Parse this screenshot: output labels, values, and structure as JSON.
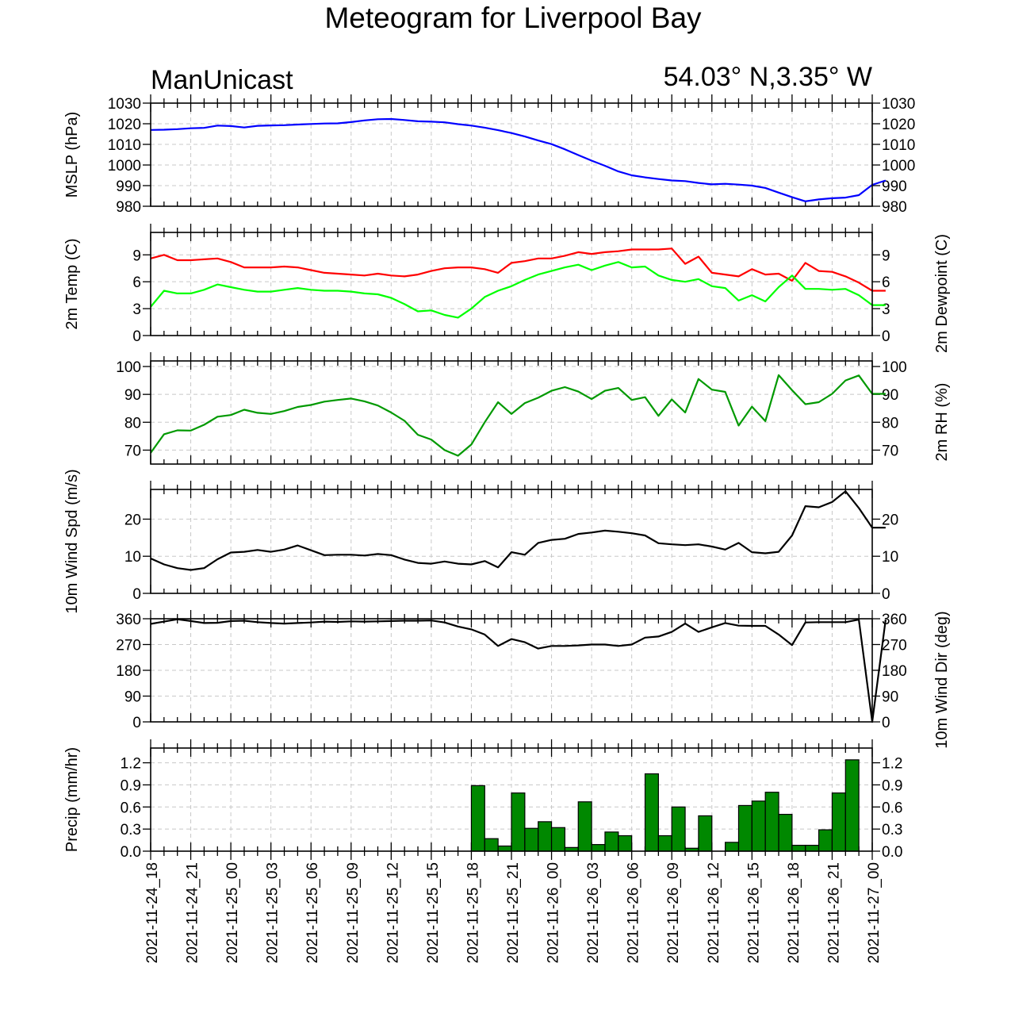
{
  "chart_data": {
    "type": "meteogram",
    "title": "Meteogram for Liverpool Bay",
    "subtitle_left": "ManUnicast",
    "subtitle_right": "54.03° N,3.35° W",
    "x_tick_labels": [
      "2021-11-24_18",
      "2021-11-24_21",
      "2021-11-25_00",
      "2021-11-25_03",
      "2021-11-25_06",
      "2021-11-25_09",
      "2021-11-25_12",
      "2021-11-25_15",
      "2021-11-25_18",
      "2021-11-25_21",
      "2021-11-26_00",
      "2021-11-26_03",
      "2021-11-26_06",
      "2021-11-26_09",
      "2021-11-26_12",
      "2021-11-26_15",
      "2021-11-26_18",
      "2021-11-26_21",
      "2021-11-27_00"
    ],
    "hours_range": [
      0,
      54
    ],
    "panels": [
      {
        "id": "mslp",
        "type": "line",
        "ylabel_left": "MSLP (hPa)",
        "ylabel_right": "",
        "ylim": [
          980,
          1030
        ],
        "yticks": [
          980,
          990,
          1000,
          1010,
          1020,
          1030
        ],
        "ytick_labels": [
          "980",
          "990",
          "1000",
          "1010",
          "1020",
          "1030"
        ],
        "series": [
          {
            "color": "#0000ff",
            "values": [
              1017.0,
              1017.1,
              1017.4,
              1017.8,
              1018.0,
              1019.1,
              1018.9,
              1018.2,
              1019.0,
              1019.2,
              1019.3,
              1019.6,
              1019.9,
              1020.1,
              1020.2,
              1020.8,
              1021.6,
              1022.2,
              1022.3,
              1021.8,
              1021.2,
              1021.0,
              1020.7,
              1019.8,
              1019.1,
              1018.1,
              1016.9,
              1015.5,
              1013.8,
              1011.9,
              1010.1,
              1007.6,
              1004.8,
              1002.1,
              999.6,
              996.9,
              995.0,
              994.0,
              993.2,
              992.5,
              992.2,
              991.3,
              990.6,
              990.9,
              990.5,
              990.0,
              988.9,
              986.6,
              984.4,
              982.4,
              983.3,
              983.9,
              984.2,
              985.4,
              990.4,
              992.5
            ]
          }
        ]
      },
      {
        "id": "temp",
        "type": "line",
        "ylabel_left": "2m Temp (C)",
        "ylabel_right": "2m Dewpoint (C)",
        "ylim": [
          0,
          11.5
        ],
        "yticks": [
          0,
          3,
          6,
          9
        ],
        "ytick_labels": [
          "0",
          "3",
          "6",
          "9"
        ],
        "series": [
          {
            "color": "#ff0000",
            "values": [
              8.6,
              9.0,
              8.4,
              8.4,
              8.5,
              8.6,
              8.2,
              7.6,
              7.6,
              7.6,
              7.7,
              7.6,
              7.3,
              7.0,
              6.9,
              6.8,
              6.7,
              6.9,
              6.7,
              6.6,
              6.8,
              7.2,
              7.5,
              7.6,
              7.6,
              7.4,
              7.0,
              8.1,
              8.3,
              8.6,
              8.6,
              8.9,
              9.3,
              9.1,
              9.3,
              9.4,
              9.6,
              9.6,
              9.6,
              9.7,
              8.0,
              8.8,
              7.0,
              6.8,
              6.6,
              7.4,
              6.8,
              6.9,
              6.1,
              8.1,
              7.2,
              7.1,
              6.6,
              5.9,
              5.0,
              5.0
            ]
          },
          {
            "color": "#00ff00",
            "values": [
              3.2,
              5.0,
              4.7,
              4.7,
              5.1,
              5.7,
              5.4,
              5.1,
              4.9,
              4.9,
              5.1,
              5.3,
              5.1,
              5.0,
              5.0,
              4.9,
              4.7,
              4.6,
              4.2,
              3.5,
              2.7,
              2.8,
              2.3,
              2.0,
              3.0,
              4.3,
              5.0,
              5.5,
              6.2,
              6.8,
              7.2,
              7.6,
              7.9,
              7.3,
              7.8,
              8.2,
              7.6,
              7.7,
              6.7,
              6.2,
              6.0,
              6.3,
              5.5,
              5.3,
              3.9,
              4.5,
              3.8,
              5.4,
              6.7,
              5.2,
              5.2,
              5.1,
              5.2,
              4.5,
              3.4,
              3.4
            ]
          }
        ]
      },
      {
        "id": "rh",
        "type": "line",
        "ylabel_left": "",
        "ylabel_right": "2m RH (%)",
        "ylim": [
          65,
          102
        ],
        "yticks": [
          70,
          80,
          90,
          100
        ],
        "ytick_labels": [
          "70",
          "80",
          "90",
          "100"
        ],
        "series": [
          {
            "color": "#009900",
            "values": [
              69,
              75.7,
              77.1,
              77,
              79.1,
              82,
              82.6,
              84.5,
              83.4,
              83,
              84,
              85.5,
              86.2,
              87.4,
              88,
              88.5,
              87.5,
              86,
              83.5,
              80.5,
              75.5,
              73.8,
              70,
              68,
              72,
              80,
              87.2,
              83,
              86.9,
              88.8,
              91.3,
              92.6,
              91,
              88.3,
              91.3,
              92.3,
              88,
              89,
              82.3,
              88.2,
              83.5,
              95.5,
              91.7,
              90.9,
              78.8,
              85.6,
              80.4,
              96.9,
              91.5,
              86.5,
              87.2,
              90.2,
              95,
              96.8,
              90.2,
              90.2
            ]
          }
        ]
      },
      {
        "id": "wspd",
        "type": "line",
        "ylabel_left": "10m Wind Spd (m/s)",
        "ylabel_right": "",
        "ylim": [
          0,
          28
        ],
        "yticks": [
          0,
          10,
          20
        ],
        "ytick_labels": [
          "0",
          "10",
          "20"
        ],
        "series": [
          {
            "color": "#000000",
            "values": [
              9.4,
              7.8,
              6.8,
              6.3,
              6.8,
              9.2,
              11.0,
              11.2,
              11.7,
              11.2,
              11.8,
              12.9,
              11.6,
              10.3,
              10.4,
              10.4,
              10.2,
              10.6,
              10.3,
              9.1,
              8.2,
              8.0,
              8.6,
              8.0,
              7.8,
              8.7,
              7.0,
              11.1,
              10.4,
              13.6,
              14.4,
              14.7,
              16.0,
              16.4,
              16.9,
              16.6,
              16.2,
              15.6,
              13.5,
              13.2,
              13.0,
              13.2,
              12.6,
              11.8,
              13.6,
              11.1,
              10.8,
              11.2,
              15.6,
              23.5,
              23.2,
              24.6,
              27.5,
              23.0,
              17.7,
              17.7
            ]
          }
        ]
      },
      {
        "id": "wdir",
        "type": "line",
        "ylabel_left": "",
        "ylabel_right": "10m Wind Dir (deg)",
        "ylim": [
          0,
          360
        ],
        "yticks": [
          0,
          90,
          180,
          270,
          360
        ],
        "ytick_labels": [
          "0",
          "90",
          "180",
          "270",
          "360"
        ],
        "series": [
          {
            "color": "#000000",
            "values": [
              342,
              350,
              358,
              352,
              345,
              346,
              352,
              353,
              348,
              345,
              343,
              345,
              347,
              350,
              349,
              351,
              350,
              351,
              352,
              353,
              353,
              354,
              347,
              333,
              323,
              305,
              265,
              289,
              278,
              256,
              265,
              265,
              267,
              270,
              270,
              265,
              270,
              294,
              298,
              314,
              343,
              314,
              330,
              345,
              336,
              335,
              335,
              305,
              268,
              347,
              348,
              348,
              348,
              357,
              0,
              357
            ]
          }
        ]
      },
      {
        "id": "precip",
        "type": "bar",
        "ylabel_left": "Precip (mm/hr)",
        "ylabel_right": "",
        "ylim": [
          0,
          1.4
        ],
        "yticks": [
          0.0,
          0.3,
          0.6,
          0.9,
          1.2
        ],
        "ytick_labels": [
          "0.0",
          "0.3",
          "0.6",
          "0.9",
          "1.2"
        ],
        "bar_color": "#008800",
        "bars": [
          {
            "hour": 25,
            "value": 0.89
          },
          {
            "hour": 26,
            "value": 0.17
          },
          {
            "hour": 27,
            "value": 0.07
          },
          {
            "hour": 28,
            "value": 0.79
          },
          {
            "hour": 29,
            "value": 0.31
          },
          {
            "hour": 30,
            "value": 0.4
          },
          {
            "hour": 31,
            "value": 0.32
          },
          {
            "hour": 32,
            "value": 0.05
          },
          {
            "hour": 33,
            "value": 0.67
          },
          {
            "hour": 34,
            "value": 0.09
          },
          {
            "hour": 35,
            "value": 0.26
          },
          {
            "hour": 36,
            "value": 0.21
          },
          {
            "hour": 38,
            "value": 1.05
          },
          {
            "hour": 39,
            "value": 0.21
          },
          {
            "hour": 40,
            "value": 0.6
          },
          {
            "hour": 41,
            "value": 0.04
          },
          {
            "hour": 42,
            "value": 0.48
          },
          {
            "hour": 44,
            "value": 0.12
          },
          {
            "hour": 45,
            "value": 0.62
          },
          {
            "hour": 46,
            "value": 0.68
          },
          {
            "hour": 47,
            "value": 0.8
          },
          {
            "hour": 48,
            "value": 0.5
          },
          {
            "hour": 49,
            "value": 0.08
          },
          {
            "hour": 50,
            "value": 0.08
          },
          {
            "hour": 51,
            "value": 0.29
          },
          {
            "hour": 52,
            "value": 0.79
          },
          {
            "hour": 53,
            "value": 1.24
          }
        ]
      }
    ]
  }
}
